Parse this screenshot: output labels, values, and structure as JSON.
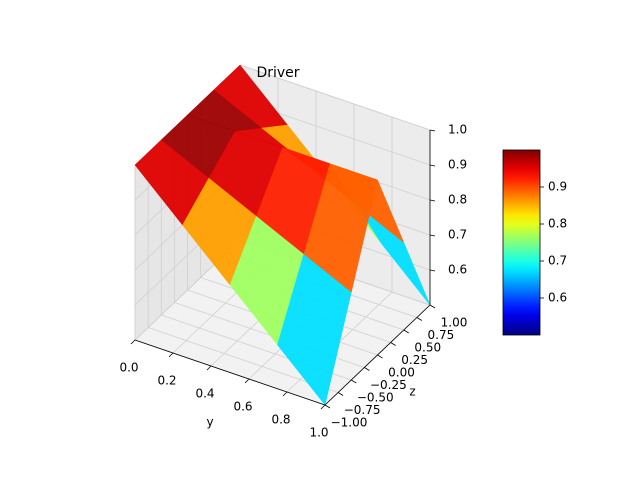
{
  "chart_data": {
    "type": "surface",
    "title": "Driver",
    "ylabel": "y",
    "zlabel": "z",
    "cmap": "jet",
    "y": [
      0,
      0.25,
      0.5,
      0.75,
      1
    ],
    "z": [
      -1,
      -0.5,
      0,
      0.5,
      1
    ],
    "values": [
      [
        1,
        1,
        1,
        1,
        1
      ],
      [
        0.875,
        0.9375,
        1,
        0.9375,
        0.875
      ],
      [
        0.75,
        0.875,
        1,
        0.875,
        0.75
      ],
      [
        0.625,
        0.8125,
        1,
        0.8125,
        0.625
      ],
      [
        0.5,
        0.75,
        1,
        0.75,
        0.5
      ]
    ],
    "ylim": [
      0,
      1
    ],
    "zlim": [
      -1,
      1
    ],
    "vlim": [
      0.5,
      1.0
    ],
    "yticks": [
      {
        "value": 0,
        "label": "0.0"
      },
      0.2,
      0.4,
      0.6,
      0.8,
      {
        "value": 1,
        "label": "1.0"
      }
    ],
    "zticks": [
      {
        "value": -1,
        "label": "−1.00"
      },
      {
        "value": -0.75,
        "label": "−0.75"
      },
      {
        "value": -0.5,
        "label": "−0.50"
      },
      {
        "value": -0.25,
        "label": "−0.25"
      },
      {
        "value": 0,
        "label": "0.00"
      },
      {
        "value": 0.25,
        "label": "0.25"
      },
      {
        "value": 0.5,
        "label": "0.50"
      },
      {
        "value": 0.75,
        "label": "0.75"
      },
      {
        "value": 1,
        "label": "1.00"
      }
    ],
    "vticks": [
      0.6,
      0.7,
      0.8,
      0.9,
      {
        "value": 1,
        "label": "1.0"
      }
    ],
    "colorbar": {
      "lim": [
        0.5,
        1.0
      ],
      "ticks": [
        0.6,
        0.7,
        0.8,
        0.9
      ]
    }
  }
}
